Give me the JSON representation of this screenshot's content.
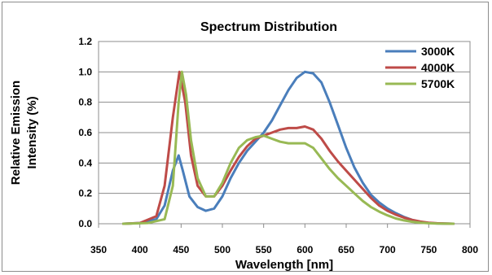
{
  "chart_data": {
    "type": "line",
    "title": "Spectrum Distribution",
    "xlabel": "Wavelength  [nm]",
    "ylabel_lines": [
      "Relative Emission",
      "Intensity (%)"
    ],
    "xlim": [
      350,
      800
    ],
    "ylim": [
      0,
      1.2
    ],
    "x_ticks": [
      "350",
      "400",
      "450",
      "500",
      "550",
      "600",
      "650",
      "700",
      "750",
      "800"
    ],
    "y_ticks": [
      "0.0",
      "0.2",
      "0.4",
      "0.6",
      "0.8",
      "1.0",
      "1.2"
    ],
    "grid": true,
    "legend_position": "top-right",
    "series": [
      {
        "name": "3000K",
        "color": "#4a7ebb",
        "points": [
          [
            380,
            0
          ],
          [
            400,
            0.005
          ],
          [
            420,
            0.03
          ],
          [
            430,
            0.12
          ],
          [
            440,
            0.35
          ],
          [
            447,
            0.45
          ],
          [
            452,
            0.35
          ],
          [
            460,
            0.18
          ],
          [
            470,
            0.11
          ],
          [
            480,
            0.085
          ],
          [
            490,
            0.1
          ],
          [
            500,
            0.18
          ],
          [
            510,
            0.3
          ],
          [
            520,
            0.4
          ],
          [
            530,
            0.48
          ],
          [
            540,
            0.54
          ],
          [
            550,
            0.6
          ],
          [
            560,
            0.68
          ],
          [
            570,
            0.78
          ],
          [
            580,
            0.88
          ],
          [
            590,
            0.96
          ],
          [
            600,
            1.0
          ],
          [
            610,
            0.99
          ],
          [
            620,
            0.93
          ],
          [
            630,
            0.8
          ],
          [
            640,
            0.65
          ],
          [
            650,
            0.5
          ],
          [
            660,
            0.37
          ],
          [
            670,
            0.27
          ],
          [
            680,
            0.19
          ],
          [
            690,
            0.14
          ],
          [
            700,
            0.1
          ],
          [
            710,
            0.07
          ],
          [
            720,
            0.045
          ],
          [
            730,
            0.025
          ],
          [
            740,
            0.012
          ],
          [
            750,
            0.005
          ],
          [
            760,
            0.002
          ],
          [
            780,
            0
          ]
        ]
      },
      {
        "name": "4000K",
        "color": "#be4b48",
        "points": [
          [
            380,
            0
          ],
          [
            400,
            0.005
          ],
          [
            420,
            0.05
          ],
          [
            430,
            0.25
          ],
          [
            440,
            0.7
          ],
          [
            448,
            1.0
          ],
          [
            455,
            0.8
          ],
          [
            462,
            0.45
          ],
          [
            470,
            0.25
          ],
          [
            480,
            0.18
          ],
          [
            490,
            0.18
          ],
          [
            500,
            0.25
          ],
          [
            510,
            0.35
          ],
          [
            520,
            0.44
          ],
          [
            530,
            0.51
          ],
          [
            540,
            0.56
          ],
          [
            550,
            0.58
          ],
          [
            560,
            0.6
          ],
          [
            570,
            0.62
          ],
          [
            580,
            0.63
          ],
          [
            590,
            0.63
          ],
          [
            600,
            0.64
          ],
          [
            610,
            0.62
          ],
          [
            620,
            0.56
          ],
          [
            630,
            0.48
          ],
          [
            640,
            0.41
          ],
          [
            650,
            0.35
          ],
          [
            660,
            0.29
          ],
          [
            670,
            0.23
          ],
          [
            680,
            0.17
          ],
          [
            690,
            0.12
          ],
          [
            700,
            0.085
          ],
          [
            710,
            0.06
          ],
          [
            720,
            0.04
          ],
          [
            730,
            0.025
          ],
          [
            740,
            0.014
          ],
          [
            750,
            0.007
          ],
          [
            760,
            0.003
          ],
          [
            780,
            0
          ]
        ]
      },
      {
        "name": "5700K",
        "color": "#98b954",
        "points": [
          [
            380,
            0
          ],
          [
            410,
            0.005
          ],
          [
            430,
            0.03
          ],
          [
            440,
            0.25
          ],
          [
            447,
            0.8
          ],
          [
            451,
            1.0
          ],
          [
            456,
            0.85
          ],
          [
            462,
            0.55
          ],
          [
            470,
            0.3
          ],
          [
            480,
            0.18
          ],
          [
            490,
            0.18
          ],
          [
            500,
            0.27
          ],
          [
            510,
            0.4
          ],
          [
            520,
            0.5
          ],
          [
            530,
            0.55
          ],
          [
            540,
            0.57
          ],
          [
            550,
            0.58
          ],
          [
            560,
            0.56
          ],
          [
            570,
            0.54
          ],
          [
            580,
            0.53
          ],
          [
            590,
            0.53
          ],
          [
            600,
            0.53
          ],
          [
            610,
            0.5
          ],
          [
            620,
            0.43
          ],
          [
            630,
            0.36
          ],
          [
            640,
            0.3
          ],
          [
            650,
            0.25
          ],
          [
            660,
            0.2
          ],
          [
            670,
            0.15
          ],
          [
            680,
            0.11
          ],
          [
            690,
            0.08
          ],
          [
            700,
            0.055
          ],
          [
            710,
            0.035
          ],
          [
            720,
            0.022
          ],
          [
            730,
            0.013
          ],
          [
            740,
            0.007
          ],
          [
            750,
            0.003
          ],
          [
            760,
            0.001
          ],
          [
            780,
            0
          ]
        ]
      }
    ]
  }
}
